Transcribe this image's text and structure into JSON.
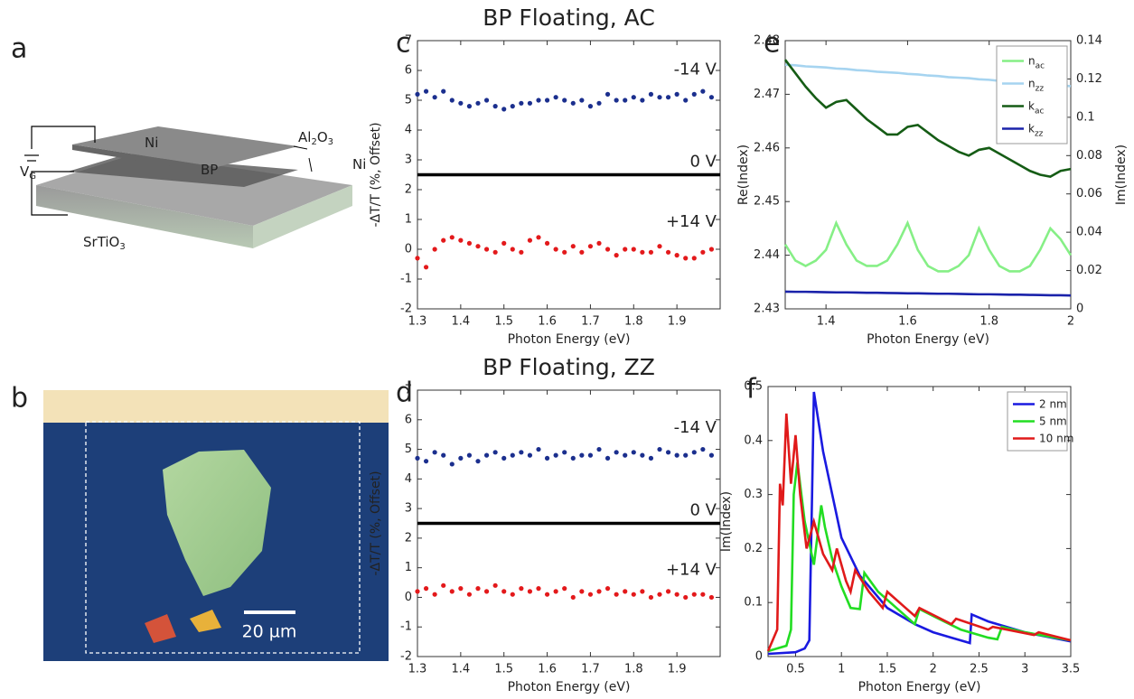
{
  "schematic": {
    "label": "a",
    "texts": [
      [
        "V",
        "G"
      ],
      [
        "Ni"
      ],
      [
        "BP"
      ],
      [
        "Al",
        "2",
        "O",
        "3"
      ],
      [
        "Ni"
      ],
      [
        "SrTiO",
        "3"
      ]
    ]
  },
  "micrograph": {
    "label": "b",
    "scale_bar": "20 µm"
  },
  "chart_data": [
    {
      "type": "scatter",
      "panel": "c",
      "title": "BP Floating, AC",
      "xlabel": "Photon Energy (eV)",
      "ylabel": "-ΔT/T (%, Offset)",
      "xlim": [
        1.3,
        2.0
      ],
      "xticks": [
        1.3,
        1.4,
        1.5,
        1.6,
        1.7,
        1.8,
        1.9
      ],
      "ylim": [
        -2,
        7
      ],
      "yticks": [
        -2,
        -1,
        0,
        1,
        2,
        3,
        4,
        5,
        6,
        7
      ],
      "x": [
        1.3,
        1.32,
        1.34,
        1.36,
        1.38,
        1.4,
        1.42,
        1.44,
        1.46,
        1.48,
        1.5,
        1.52,
        1.54,
        1.56,
        1.58,
        1.6,
        1.62,
        1.64,
        1.66,
        1.68,
        1.7,
        1.72,
        1.74,
        1.76,
        1.78,
        1.8,
        1.82,
        1.84,
        1.86,
        1.88,
        1.9,
        1.92,
        1.94,
        1.96,
        1.98
      ],
      "series": [
        {
          "name": "-14 V",
          "color": "#1b2f8e",
          "values": [
            5.2,
            5.3,
            5.1,
            5.3,
            5.0,
            4.9,
            4.8,
            4.9,
            5.0,
            4.8,
            4.7,
            4.8,
            4.9,
            4.9,
            5.0,
            5.0,
            5.1,
            5.0,
            4.9,
            5.0,
            4.8,
            4.9,
            5.2,
            5.0,
            5.0,
            5.1,
            5.0,
            5.2,
            5.1,
            5.1,
            5.2,
            5.0,
            5.2,
            5.3,
            5.1
          ]
        },
        {
          "name": "+14 V",
          "color": "#e3191b",
          "values": [
            -0.3,
            -0.6,
            0.0,
            0.3,
            0.4,
            0.3,
            0.2,
            0.1,
            0.0,
            -0.1,
            0.2,
            0.0,
            -0.1,
            0.3,
            0.4,
            0.2,
            0.0,
            -0.1,
            0.1,
            -0.1,
            0.1,
            0.2,
            0.0,
            -0.2,
            0.0,
            0.0,
            -0.1,
            -0.1,
            0.1,
            -0.1,
            -0.2,
            -0.3,
            -0.3,
            -0.1,
            0.0
          ]
        }
      ],
      "reference_line": {
        "name": "0 V",
        "value": 2.5,
        "color": "#000000"
      }
    },
    {
      "type": "scatter",
      "panel": "d",
      "title": "BP Floating, ZZ",
      "xlabel": "Photon Energy (eV)",
      "ylabel": "-ΔT/T (%, Offset)",
      "xlim": [
        1.3,
        2.0
      ],
      "xticks": [
        1.3,
        1.4,
        1.5,
        1.6,
        1.7,
        1.8,
        1.9
      ],
      "ylim": [
        -2,
        7
      ],
      "yticks": [
        -2,
        -1,
        0,
        1,
        2,
        3,
        4,
        5,
        6,
        7
      ],
      "x": [
        1.3,
        1.32,
        1.34,
        1.36,
        1.38,
        1.4,
        1.42,
        1.44,
        1.46,
        1.48,
        1.5,
        1.52,
        1.54,
        1.56,
        1.58,
        1.6,
        1.62,
        1.64,
        1.66,
        1.68,
        1.7,
        1.72,
        1.74,
        1.76,
        1.78,
        1.8,
        1.82,
        1.84,
        1.86,
        1.88,
        1.9,
        1.92,
        1.94,
        1.96,
        1.98
      ],
      "series": [
        {
          "name": "-14 V",
          "color": "#1b2f8e",
          "values": [
            4.7,
            4.6,
            4.9,
            4.8,
            4.5,
            4.7,
            4.8,
            4.6,
            4.8,
            4.9,
            4.7,
            4.8,
            4.9,
            4.8,
            5.0,
            4.7,
            4.8,
            4.9,
            4.7,
            4.8,
            4.8,
            5.0,
            4.7,
            4.9,
            4.8,
            4.9,
            4.8,
            4.7,
            5.0,
            4.9,
            4.8,
            4.8,
            4.9,
            5.0,
            4.8
          ]
        },
        {
          "name": "+14 V",
          "color": "#e3191b",
          "values": [
            0.2,
            0.3,
            0.1,
            0.4,
            0.2,
            0.3,
            0.1,
            0.3,
            0.2,
            0.4,
            0.2,
            0.1,
            0.3,
            0.2,
            0.3,
            0.1,
            0.2,
            0.3,
            0.0,
            0.2,
            0.1,
            0.2,
            0.3,
            0.1,
            0.2,
            0.1,
            0.2,
            0.0,
            0.1,
            0.2,
            0.1,
            0.0,
            0.1,
            0.1,
            0.0
          ]
        }
      ],
      "reference_line": {
        "name": "0 V",
        "value": 2.5,
        "color": "#000000"
      }
    },
    {
      "type": "line",
      "panel": "e",
      "xlabel": "Photon Energy (eV)",
      "ylabel": "Re(Index)",
      "y2label": "Im(Index)",
      "xlim": [
        1.3,
        2
      ],
      "xticks": [
        1.4,
        1.6,
        1.8,
        2
      ],
      "ylim": [
        2.43,
        2.48
      ],
      "yticks": [
        2.43,
        2.44,
        2.45,
        2.46,
        2.47,
        2.48
      ],
      "y2lim": [
        0,
        0.14
      ],
      "y2ticks": [
        0,
        0.02,
        0.04,
        0.06,
        0.08,
        0.1,
        0.12,
        0.14
      ],
      "legend": "upper right",
      "x": [
        1.3,
        1.325,
        1.35,
        1.375,
        1.4,
        1.425,
        1.45,
        1.475,
        1.5,
        1.525,
        1.55,
        1.575,
        1.6,
        1.625,
        1.65,
        1.675,
        1.7,
        1.725,
        1.75,
        1.775,
        1.8,
        1.825,
        1.85,
        1.875,
        1.9,
        1.925,
        1.95,
        1.975,
        2.0
      ],
      "series": [
        {
          "name": "n",
          "name_sub": "ac",
          "color": "#86ef86",
          "values": [
            2.442,
            2.439,
            2.438,
            2.439,
            2.441,
            2.446,
            2.442,
            2.439,
            2.438,
            2.438,
            2.439,
            2.442,
            2.446,
            2.441,
            2.438,
            2.437,
            2.437,
            2.438,
            2.44,
            2.445,
            2.441,
            2.438,
            2.437,
            2.437,
            2.438,
            2.441,
            2.445,
            2.443,
            2.44
          ]
        },
        {
          "name": "n",
          "name_sub": "zz",
          "color": "#a6d4f0",
          "values": [
            2.4755,
            2.4754,
            2.4752,
            2.4751,
            2.475,
            2.4748,
            2.4747,
            2.4745,
            2.4744,
            2.4742,
            2.4741,
            2.474,
            2.4738,
            2.4737,
            2.4735,
            2.4734,
            2.4732,
            2.4731,
            2.473,
            2.4728,
            2.4727,
            2.4725,
            2.4724,
            2.4722,
            2.4721,
            2.472,
            2.4718,
            2.4717,
            2.4715
          ]
        },
        {
          "name": "k",
          "name_sub": "ac",
          "color": "#155c15",
          "axis": "y2",
          "values": [
            0.13,
            0.123,
            0.116,
            0.11,
            0.105,
            0.108,
            0.109,
            0.104,
            0.099,
            0.095,
            0.091,
            0.091,
            0.095,
            0.096,
            0.092,
            0.088,
            0.085,
            0.082,
            0.08,
            0.083,
            0.084,
            0.081,
            0.078,
            0.075,
            0.072,
            0.07,
            0.069,
            0.072,
            0.073
          ]
        },
        {
          "name": "k",
          "name_sub": "zz",
          "color": "#1a22aa",
          "axis": "y2",
          "values": [
            0.009,
            0.0089,
            0.0089,
            0.0088,
            0.0087,
            0.0086,
            0.0086,
            0.0085,
            0.0084,
            0.0084,
            0.0083,
            0.0082,
            0.0081,
            0.0081,
            0.008,
            0.0079,
            0.0079,
            0.0078,
            0.0077,
            0.0076,
            0.0076,
            0.0075,
            0.0074,
            0.0074,
            0.0073,
            0.0072,
            0.0071,
            0.0071,
            0.007
          ]
        }
      ]
    },
    {
      "type": "line",
      "panel": "f",
      "xlabel": "Photon Energy (eV)",
      "ylabel": "Im(Index)",
      "xlim": [
        0.2,
        3.5
      ],
      "xticks": [
        0.5,
        1,
        1.5,
        2,
        2.5,
        3,
        3.5
      ],
      "ylim": [
        0,
        0.5
      ],
      "yticks": [
        0,
        0.1,
        0.2,
        0.3,
        0.4,
        0.5
      ],
      "legend": "upper right",
      "series": [
        {
          "name": "2 nm",
          "color": "#1a1ae0",
          "x": [
            0.2,
            0.5,
            0.6,
            0.65,
            0.68,
            0.7,
            0.8,
            0.9,
            1.0,
            1.2,
            1.5,
            1.8,
            2.0,
            2.2,
            2.4,
            2.42,
            2.6,
            2.8,
            3.0,
            3.2,
            3.5
          ],
          "values": [
            0.005,
            0.008,
            0.015,
            0.03,
            0.3,
            0.49,
            0.38,
            0.3,
            0.22,
            0.15,
            0.09,
            0.06,
            0.045,
            0.035,
            0.025,
            0.078,
            0.065,
            0.055,
            0.045,
            0.038,
            0.028
          ]
        },
        {
          "name": "5 nm",
          "color": "#22dd22",
          "x": [
            0.2,
            0.4,
            0.45,
            0.48,
            0.52,
            0.6,
            0.7,
            0.78,
            0.82,
            0.9,
            1.0,
            1.1,
            1.2,
            1.25,
            1.4,
            1.6,
            1.8,
            1.85,
            2.0,
            2.3,
            2.5,
            2.6,
            2.7,
            2.75,
            3.0,
            3.5
          ],
          "values": [
            0.01,
            0.02,
            0.05,
            0.3,
            0.36,
            0.25,
            0.17,
            0.28,
            0.24,
            0.18,
            0.13,
            0.09,
            0.088,
            0.155,
            0.12,
            0.09,
            0.06,
            0.088,
            0.075,
            0.05,
            0.04,
            0.035,
            0.032,
            0.055,
            0.045,
            0.03
          ]
        },
        {
          "name": "10 nm",
          "color": "#e01a1a",
          "x": [
            0.2,
            0.3,
            0.33,
            0.36,
            0.4,
            0.45,
            0.5,
            0.55,
            0.62,
            0.7,
            0.8,
            0.9,
            0.95,
            1.05,
            1.1,
            1.15,
            1.3,
            1.45,
            1.5,
            1.7,
            1.8,
            1.85,
            2.2,
            2.25,
            2.6,
            2.65,
            3.1,
            3.15,
            3.5
          ],
          "values": [
            0.01,
            0.05,
            0.32,
            0.28,
            0.45,
            0.32,
            0.41,
            0.3,
            0.2,
            0.25,
            0.19,
            0.16,
            0.2,
            0.14,
            0.12,
            0.16,
            0.12,
            0.09,
            0.12,
            0.09,
            0.075,
            0.09,
            0.06,
            0.07,
            0.05,
            0.055,
            0.04,
            0.045,
            0.03
          ]
        }
      ]
    }
  ]
}
